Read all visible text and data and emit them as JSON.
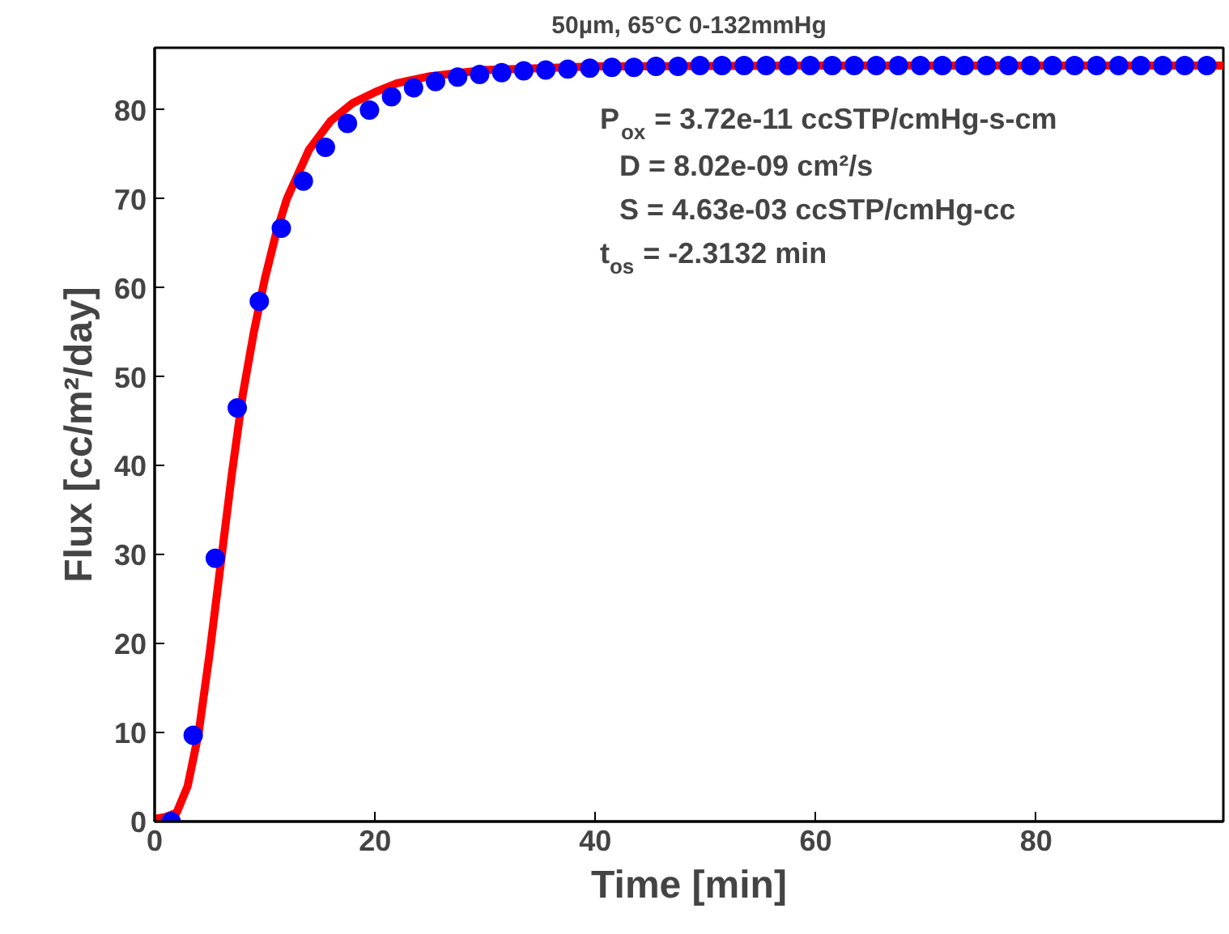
{
  "chart_data": {
    "type": "scatter",
    "title": "50µm, 65°C 0-132mmHg",
    "xlabel": "Time [min]",
    "ylabel": "Flux [cc/m²/day]",
    "xlim": [
      0,
      97
    ],
    "ylim": [
      0,
      87
    ],
    "xticks": [
      0,
      20,
      40,
      60,
      80
    ],
    "yticks": [
      0,
      10,
      20,
      30,
      40,
      50,
      60,
      70,
      80
    ],
    "grid": false,
    "series": [
      {
        "type": "line",
        "marker": "none",
        "color": "#ff0000",
        "line_style": "solid",
        "x": [
          0,
          1,
          2,
          3,
          4,
          5,
          6,
          7,
          8,
          9,
          10,
          11,
          12,
          14,
          16,
          18,
          20,
          22,
          25,
          30,
          40,
          60,
          97
        ],
        "values": [
          0.3,
          0.5,
          1,
          4,
          10,
          19,
          29,
          39,
          48,
          55,
          61,
          66,
          70,
          75.5,
          78.8,
          80.8,
          82,
          83,
          83.8,
          84.5,
          84.9,
          85,
          85
        ]
      },
      {
        "marker": "circle",
        "color": "#0000ff",
        "x": [
          1.5,
          3.5,
          5.5,
          7.5,
          9.5,
          11.5,
          13.5,
          15.5,
          17.5,
          19.5,
          21.5,
          23.5,
          25.5,
          27.5,
          29.5,
          31.5,
          33.5,
          35.5,
          37.5,
          39.5,
          41.5,
          43.5,
          45.5,
          47.5,
          49.5,
          51.5,
          53.5,
          55.5,
          57.5,
          59.5,
          61.5,
          63.5,
          65.5,
          67.5,
          69.5,
          71.5,
          73.5,
          75.5,
          77.5,
          79.5,
          81.5,
          83.5,
          85.5,
          87.5,
          89.5,
          91.5,
          93.5,
          95.5
        ],
        "values": [
          0,
          9.7,
          29.6,
          46.5,
          58.5,
          66.7,
          72,
          75.8,
          78.5,
          80,
          81.5,
          82.5,
          83.2,
          83.7,
          84,
          84.2,
          84.4,
          84.5,
          84.6,
          84.7,
          84.8,
          84.8,
          84.9,
          84.9,
          85,
          85,
          85,
          85,
          85,
          85,
          85,
          85,
          85,
          85,
          85,
          85,
          85,
          85,
          85,
          85,
          85,
          85,
          85,
          85,
          85,
          85,
          85,
          85
        ]
      }
    ],
    "annotations": [
      "P$_{ox}$ = 3.72e-11 ccSTP/cmHg-s-cm",
      "D = 8.02e-09 cm²/s",
      "S = 4.63e-03 ccSTP/cmHg-cc",
      "t$_{os}$ = -2.3132 min"
    ]
  }
}
